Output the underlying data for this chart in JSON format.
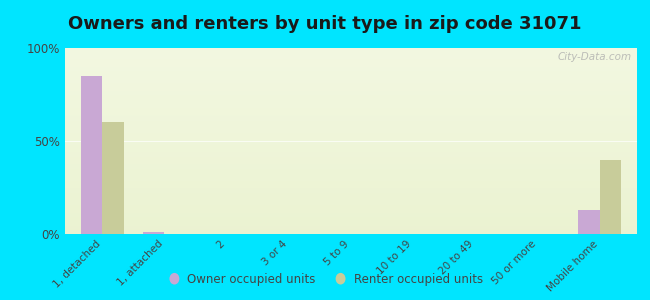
{
  "title": "Owners and renters by unit type in zip code 31071",
  "categories": [
    "1, detached",
    "1, attached",
    "2",
    "3 or 4",
    "5 to 9",
    "10 to 19",
    "20 to 49",
    "50 or more",
    "Mobile home"
  ],
  "owner_values": [
    85,
    1,
    0,
    0,
    0,
    0,
    0,
    0,
    13
  ],
  "renter_values": [
    60,
    0,
    0,
    0,
    0,
    0,
    0,
    0,
    40
  ],
  "owner_color": "#c9a8d4",
  "renter_color": "#c8cc9a",
  "background_color": "#00e5ff",
  "ylim": [
    0,
    100
  ],
  "yticks": [
    0,
    50,
    100
  ],
  "ytick_labels": [
    "0%",
    "50%",
    "100%"
  ],
  "title_fontsize": 13,
  "watermark_text": "City-Data.com",
  "legend_labels": [
    "Owner occupied units",
    "Renter occupied units"
  ]
}
